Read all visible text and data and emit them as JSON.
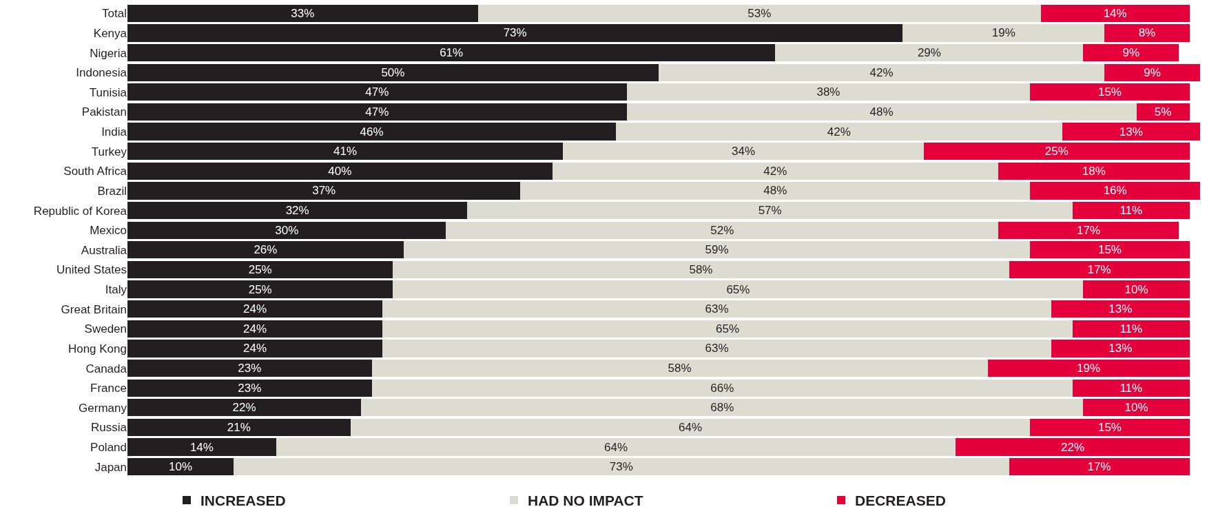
{
  "chart_data": {
    "type": "bar",
    "orientation": "horizontal",
    "stacked": true,
    "legend": "bottom",
    "tick_labels": "y",
    "xlim": [
      0,
      101
    ],
    "categories": [
      "Total",
      "Kenya",
      "Nigeria",
      "Indonesia",
      "Tunisia",
      "Pakistan",
      "India",
      "Turkey",
      "South Africa",
      "Brazil",
      "Republic of Korea",
      "Mexico",
      "Australia",
      "United States",
      "Italy",
      "Great Britain",
      "Sweden",
      "Hong Kong",
      "Canada",
      "France",
      "Germany",
      "Russia",
      "Poland",
      "Japan"
    ],
    "series": [
      {
        "name": "INCREASED",
        "color": "#231f20",
        "values": [
          33,
          73,
          61,
          50,
          47,
          47,
          46,
          41,
          40,
          37,
          32,
          30,
          26,
          25,
          25,
          24,
          24,
          24,
          23,
          23,
          22,
          21,
          14,
          10
        ],
        "value_labels": [
          "33%",
          "73%",
          "61%",
          "50%",
          "47%",
          "47%",
          "46%",
          "41%",
          "40%",
          "37%",
          "32%",
          "30%",
          "26%",
          "25%",
          "25%",
          "24%",
          "24%",
          "24%",
          "23%",
          "23%",
          "22%",
          "21%",
          "14%",
          "10%"
        ]
      },
      {
        "name": "HAD NO IMPACT",
        "color": "#dddcd1",
        "values": [
          53,
          19,
          29,
          42,
          38,
          48,
          42,
          34,
          42,
          48,
          57,
          52,
          59,
          58,
          65,
          63,
          65,
          63,
          58,
          66,
          68,
          64,
          64,
          73
        ],
        "value_labels": [
          "53%",
          "19%",
          "29%",
          "42%",
          "38%",
          "48%",
          "42%",
          "34%",
          "42%",
          "48%",
          "57%",
          "52%",
          "59%",
          "58%",
          "65%",
          "63%",
          "65%",
          "63%",
          "58%",
          "66%",
          "68%",
          "64%",
          "64%",
          "73%"
        ]
      },
      {
        "name": "DECREASED",
        "color": "#e4003b",
        "values": [
          14,
          8,
          9,
          9,
          15,
          5,
          13,
          25,
          18,
          16,
          11,
          17,
          15,
          17,
          10,
          13,
          11,
          13,
          19,
          11,
          10,
          15,
          22,
          17
        ],
        "value_labels": [
          "14%",
          "8%",
          "9%",
          "9%",
          "15%",
          "5%",
          "13%",
          "25%",
          "18%",
          "16%",
          "11%",
          "17%",
          "15%",
          "17%",
          "10%",
          "13%",
          "11%",
          "13%",
          "19%",
          "11%",
          "10%",
          "15%",
          "22%",
          "17%"
        ]
      }
    ]
  }
}
